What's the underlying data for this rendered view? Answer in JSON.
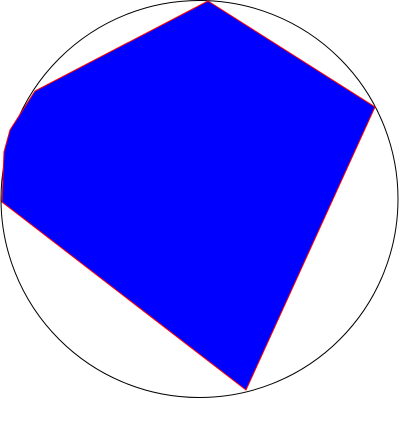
{
  "figure": {
    "shapes": [
      {
        "kind": "circle",
        "name": "circumscribed-circle"
      },
      {
        "kind": "polygon",
        "name": "inscribed-polygon",
        "vertex_count": 7
      }
    ],
    "colors": {
      "background": "#ffffff",
      "circle_stroke": "#000000",
      "polygon_fill": "#0000ff",
      "polygon_stroke": "#ff0000"
    }
  }
}
